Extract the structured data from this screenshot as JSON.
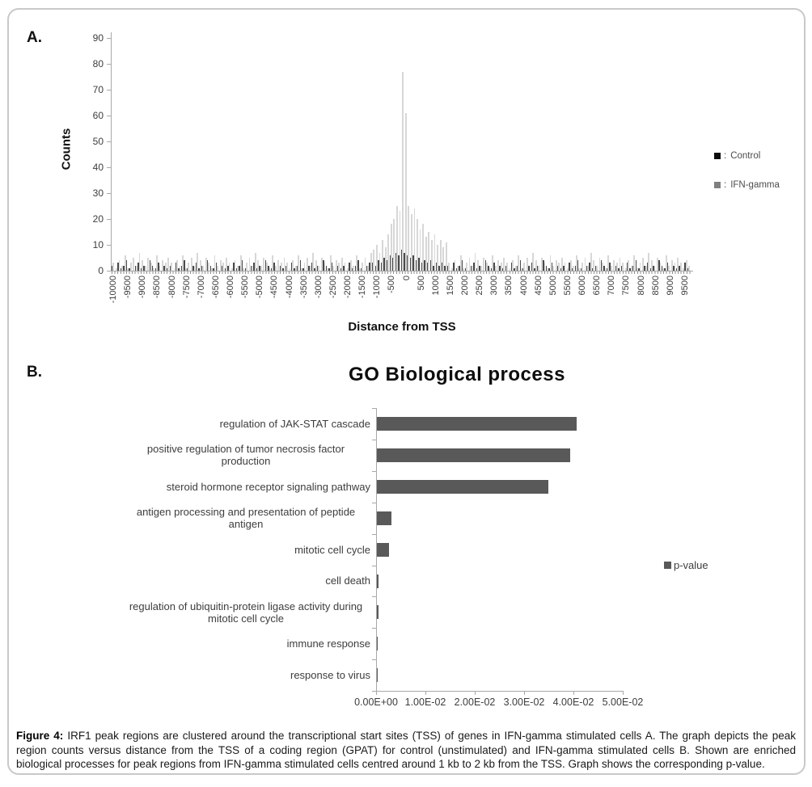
{
  "panel_a": {
    "label": "A.",
    "ylabel": "Counts",
    "xlabel": "Distance from TSS",
    "legend_separator": ":",
    "legend": [
      {
        "label": "Control",
        "color": "#0d0d0d"
      },
      {
        "label": "IFN-gamma",
        "color": "#7f7f7f"
      }
    ]
  },
  "panel_b": {
    "label": "B.",
    "title": "GO Biological process",
    "legend_label": "p-value",
    "legend_color": "#595959"
  },
  "caption": {
    "prefix": "Figure 4:",
    "body": " IRF1 peak regions are clustered around the transcriptional start sites (TSS) of genes in IFN-gamma stimulated cells A. The graph depicts the peak region counts versus distance from the TSS of a coding region (GPAT) for control (unstimulated) and IFN-gamma stimulated cells B. Shown are enriched biological processes for peak regions from IFN-gamma stimulated cells centred around 1 kb to 2 kb from the TSS. Graph shows the corresponding p-value."
  },
  "chart_data": [
    {
      "type": "bar",
      "title": "",
      "xlabel": "Distance from TSS",
      "ylabel": "Counts",
      "ylim": [
        0,
        90
      ],
      "yticks": [
        0,
        10,
        20,
        30,
        40,
        50,
        60,
        70,
        80,
        90
      ],
      "bin_start": -10000,
      "bin_step": 100,
      "grid": false,
      "legend_position": "right",
      "xtick_labels": [
        "-10000",
        "-9500",
        "-9000",
        "-8500",
        "-8000",
        "-7500",
        "-7000",
        "-6500",
        "-6000",
        "-5500",
        "-5000",
        "-4500",
        "-4000",
        "-3500",
        "-3000",
        "-2500",
        "-2000",
        "-1500",
        "-1000",
        "-500",
        "0",
        "500",
        "1000",
        "1500",
        "2000",
        "2500",
        "3000",
        "3500",
        "4000",
        "4500",
        "5000",
        "5500",
        "6000",
        "6500",
        "7000",
        "7500",
        "8000",
        "8500",
        "9000",
        "9500"
      ],
      "series": [
        {
          "name": "Control",
          "color": "#4a4a4a",
          "values": [
            2,
            0,
            3,
            1,
            2,
            4,
            1,
            0,
            2,
            3,
            1,
            2,
            0,
            4,
            2,
            1,
            3,
            0,
            2,
            1,
            2,
            0,
            3,
            1,
            2,
            4,
            1,
            0,
            2,
            3,
            1,
            2,
            0,
            4,
            2,
            1,
            3,
            0,
            2,
            1,
            2,
            0,
            3,
            1,
            2,
            4,
            1,
            0,
            2,
            3,
            1,
            2,
            0,
            4,
            2,
            1,
            3,
            0,
            2,
            1,
            2,
            0,
            3,
            1,
            2,
            4,
            1,
            0,
            2,
            3,
            1,
            2,
            0,
            4,
            2,
            1,
            3,
            0,
            2,
            1,
            2,
            0,
            3,
            1,
            2,
            4,
            1,
            0,
            2,
            3,
            3,
            2,
            4,
            3,
            5,
            4,
            6,
            5,
            7,
            6,
            8,
            7,
            6,
            5,
            6,
            4,
            5,
            3,
            4,
            3,
            4,
            2,
            3,
            2,
            3,
            2,
            2,
            0,
            3,
            1,
            2,
            4,
            1,
            0,
            2,
            3,
            1,
            2,
            0,
            4,
            2,
            1,
            3,
            0,
            2,
            1,
            2,
            0,
            3,
            1,
            2,
            4,
            1,
            0,
            2,
            3,
            1,
            2,
            0,
            4,
            2,
            1,
            3,
            0,
            2,
            1,
            2,
            0,
            3,
            1,
            2,
            4,
            1,
            0,
            2,
            3,
            1,
            2,
            0,
            4,
            2,
            1,
            3,
            0,
            2,
            1,
            2,
            0,
            3,
            1,
            2,
            4,
            1,
            0,
            2,
            3,
            1,
            2,
            0,
            4,
            2,
            1,
            3,
            0,
            2,
            1,
            2,
            0,
            3,
            1
          ]
        },
        {
          "name": "IFN-gamma",
          "color": "#d7d7d7",
          "values": [
            3,
            1,
            4,
            2,
            6,
            1,
            3,
            5,
            2,
            7,
            4,
            2,
            5,
            3,
            1,
            6,
            2,
            4,
            3,
            5,
            3,
            1,
            4,
            2,
            6,
            1,
            3,
            5,
            2,
            7,
            4,
            2,
            5,
            3,
            1,
            6,
            2,
            4,
            3,
            5,
            3,
            1,
            4,
            2,
            6,
            1,
            3,
            5,
            2,
            7,
            4,
            2,
            5,
            3,
            1,
            6,
            2,
            4,
            3,
            5,
            3,
            1,
            4,
            2,
            6,
            1,
            3,
            5,
            2,
            7,
            4,
            2,
            5,
            3,
            1,
            6,
            2,
            4,
            3,
            5,
            3,
            1,
            4,
            2,
            6,
            1,
            3,
            5,
            2,
            7,
            8,
            10,
            7,
            12,
            9,
            14,
            18,
            20,
            25,
            23,
            77,
            61,
            25,
            22,
            24,
            20,
            16,
            18,
            13,
            15,
            12,
            14,
            10,
            12,
            9,
            11,
            3,
            1,
            4,
            2,
            6,
            1,
            3,
            5,
            2,
            7,
            4,
            2,
            5,
            3,
            1,
            6,
            2,
            4,
            3,
            5,
            3,
            1,
            4,
            2,
            6,
            1,
            3,
            5,
            2,
            7,
            4,
            2,
            5,
            3,
            1,
            6,
            2,
            4,
            3,
            5,
            3,
            1,
            4,
            2,
            6,
            1,
            3,
            5,
            2,
            7,
            4,
            2,
            5,
            3,
            1,
            6,
            2,
            4,
            3,
            5,
            3,
            1,
            4,
            2,
            6,
            1,
            3,
            5,
            2,
            7,
            4,
            2,
            5,
            3,
            1,
            6,
            2,
            4,
            3,
            5,
            3,
            1,
            4,
            2
          ]
        }
      ]
    },
    {
      "type": "bar",
      "orientation": "horizontal",
      "title": "GO Biological process",
      "categories": [
        "regulation of JAK-STAT cascade",
        "positive regulation of tumor necrosis factor production",
        "steroid hormone receptor signaling pathway",
        "antigen processing and presentation of peptide antigen",
        "mitotic cell cycle",
        "cell death",
        "regulation of ubiquitin-protein ligase activity during mitotic cell cycle",
        "immune response",
        "response to virus"
      ],
      "values": [
        0.0405,
        0.0392,
        0.0347,
        0.003,
        0.0025,
        0.0004,
        0.0004,
        0.0002,
        0.0002
      ],
      "xlim": [
        0,
        0.05
      ],
      "xtick_labels": [
        "0.00E+00",
        "1.00E-02",
        "2.00E-02",
        "3.00E-02",
        "4.00E-02",
        "5.00E-02"
      ],
      "bar_color": "#595959",
      "grid": false,
      "legend": [
        "p-value"
      ],
      "legend_position": "right"
    }
  ]
}
